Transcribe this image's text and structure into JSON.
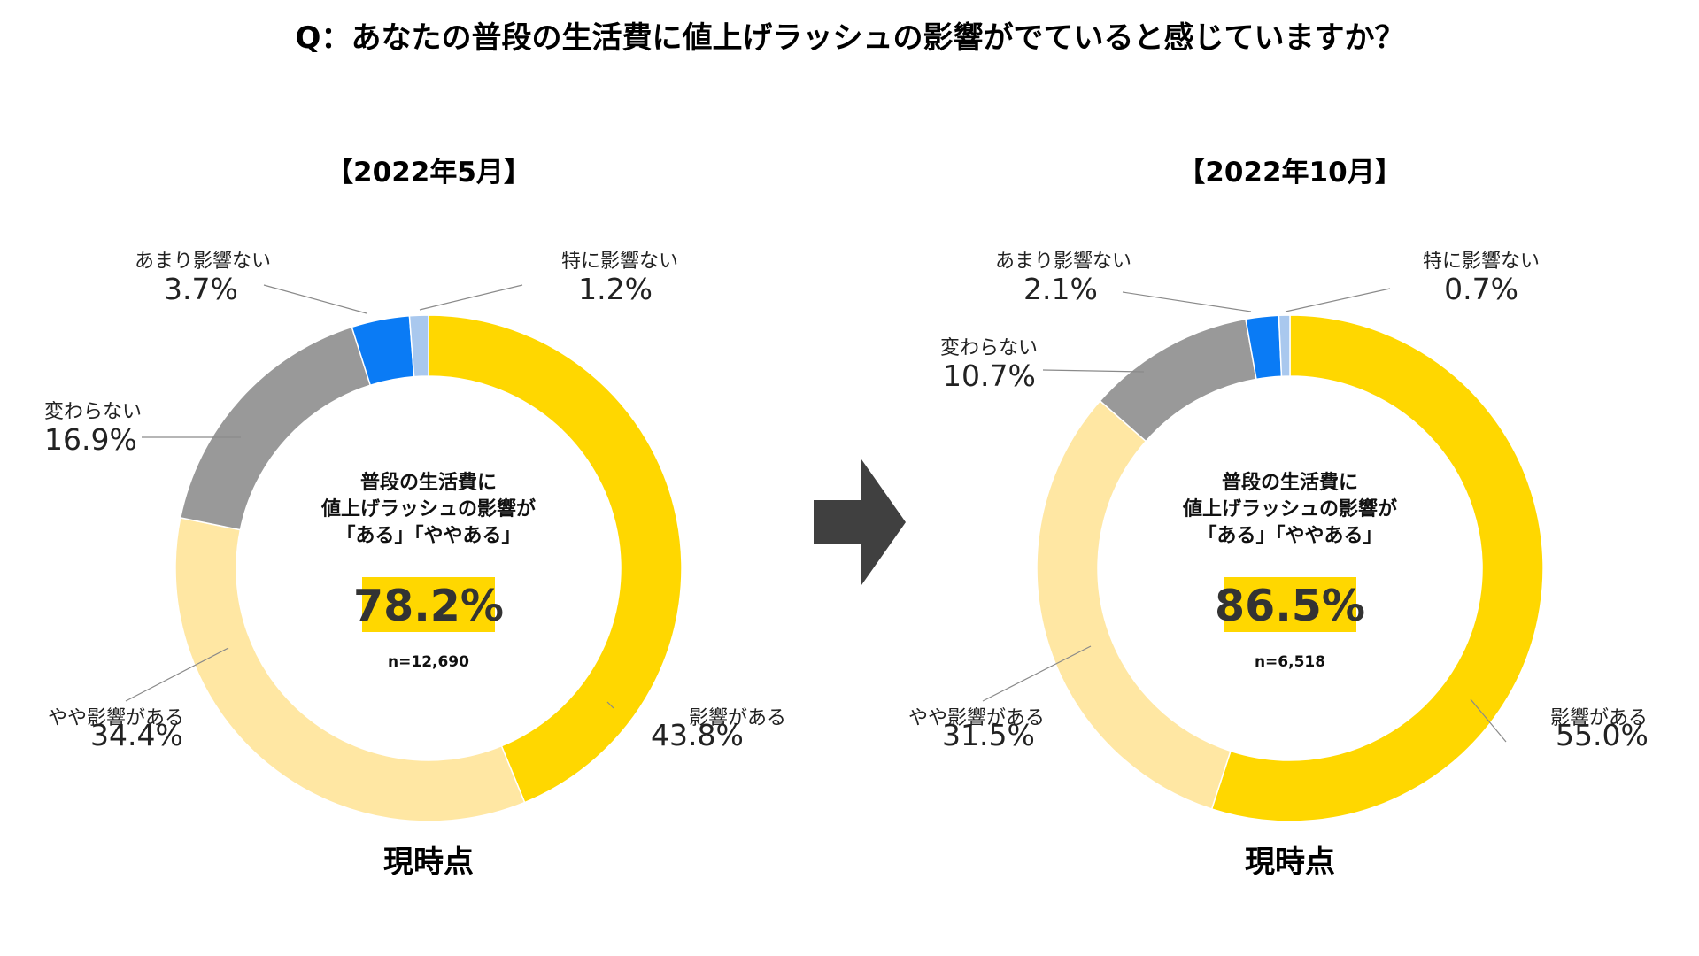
{
  "title": "Q：あなたの普段の生活費に値上げラッシュの影響がでていると感じていますか？",
  "colors": {
    "影響がある": "#FFD700",
    "やや影響がある": "#FFE7A3",
    "変わらない": "#999999",
    "あまり影響ない": "#0A7BF5",
    "特に影響ない": "#A9C8EE",
    "highlight": "#FFD700",
    "arrow": "#404040"
  },
  "arrow_icon": "right-arrow-icon",
  "chart_data": [
    {
      "type": "pie",
      "variant": "donut",
      "title": "【2022年5月】",
      "center_lines": [
        "普段の生活費に",
        "値上げラッシュの影響が",
        "「ある」「ややある」"
      ],
      "center_value": "78.2%",
      "n_label": "n=12,690",
      "footer": "現時点",
      "slices": [
        {
          "label": "影響がある",
          "value": 43.8,
          "value_label": "43.8%"
        },
        {
          "label": "やや影響がある",
          "value": 34.4,
          "value_label": "34.4%"
        },
        {
          "label": "変わらない",
          "value": 16.9,
          "value_label": "16.9%"
        },
        {
          "label": "あまり影響ない",
          "value": 3.7,
          "value_label": "3.7%"
        },
        {
          "label": "特に影響ない",
          "value": 1.2,
          "value_label": "1.2%"
        }
      ]
    },
    {
      "type": "pie",
      "variant": "donut",
      "title": "【2022年10月】",
      "center_lines": [
        "普段の生活費に",
        "値上げラッシュの影響が",
        "「ある」「ややある」"
      ],
      "center_value": "86.5%",
      "n_label": "n=6,518",
      "footer": "現時点",
      "slices": [
        {
          "label": "影響がある",
          "value": 55.0,
          "value_label": "55.0%"
        },
        {
          "label": "やや影響がある",
          "value": 31.5,
          "value_label": "31.5%"
        },
        {
          "label": "変わらない",
          "value": 10.7,
          "value_label": "10.7%"
        },
        {
          "label": "あまり影響ない",
          "value": 2.1,
          "value_label": "2.1%"
        },
        {
          "label": "特に影響ない",
          "value": 0.7,
          "value_label": "0.7%"
        }
      ]
    }
  ]
}
